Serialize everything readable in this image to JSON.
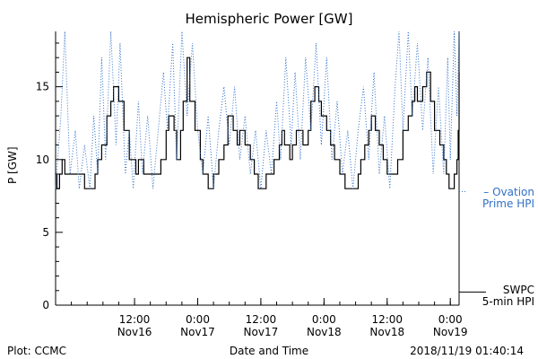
{
  "chart_data": {
    "type": "line",
    "title": "Hemispheric Power [GW]",
    "ylabel": "P [GW]",
    "xlabel": "Date and Time",
    "ylim": [
      0,
      18.8
    ],
    "xlim": [
      "2018-11-15 21:00",
      "2018-11-19 01:40"
    ],
    "yticks": [
      0,
      5,
      10,
      15
    ],
    "xticks": [
      {
        "time": "2018-11-16 12:00",
        "line1": "12:00",
        "line2": "Nov16"
      },
      {
        "time": "2018-11-17 00:00",
        "line1": "0:00",
        "line2": "Nov17"
      },
      {
        "time": "2018-11-17 12:00",
        "line1": "12:00",
        "line2": "Nov17"
      },
      {
        "time": "2018-11-18 00:00",
        "line1": "0:00",
        "line2": "Nov18"
      },
      {
        "time": "2018-11-18 12:00",
        "line1": "12:00",
        "line2": "Nov18"
      },
      {
        "time": "2018-11-19 00:00",
        "line1": "0:00",
        "line2": "Nov19"
      }
    ],
    "series": [
      {
        "name": "SWPC 5-min HPI",
        "color": "#000000",
        "style": "step",
        "points": [
          [
            "2018-11-15 21:00",
            9
          ],
          [
            "2018-11-15 21:15",
            8
          ],
          [
            "2018-11-15 21:45",
            9
          ],
          [
            "2018-11-15 22:15",
            10
          ],
          [
            "2018-11-15 22:45",
            9
          ],
          [
            "2018-11-16 02:30",
            8
          ],
          [
            "2018-11-16 04:30",
            9
          ],
          [
            "2018-11-16 05:00",
            10
          ],
          [
            "2018-11-16 05:45",
            11
          ],
          [
            "2018-11-16 06:45",
            13
          ],
          [
            "2018-11-16 07:30",
            14
          ],
          [
            "2018-11-16 08:00",
            15
          ],
          [
            "2018-11-16 09:00",
            14
          ],
          [
            "2018-11-16 10:00",
            12
          ],
          [
            "2018-11-16 11:00",
            10
          ],
          [
            "2018-11-16 12:15",
            9
          ],
          [
            "2018-11-16 12:45",
            10
          ],
          [
            "2018-11-16 13:45",
            9
          ],
          [
            "2018-11-16 17:00",
            10
          ],
          [
            "2018-11-16 18:00",
            12
          ],
          [
            "2018-11-16 18:30",
            13
          ],
          [
            "2018-11-16 19:30",
            12
          ],
          [
            "2018-11-16 20:00",
            10
          ],
          [
            "2018-11-16 20:45",
            12
          ],
          [
            "2018-11-16 21:15",
            14
          ],
          [
            "2018-11-16 22:00",
            17
          ],
          [
            "2018-11-16 22:30",
            14
          ],
          [
            "2018-11-16 23:30",
            12
          ],
          [
            "2018-11-17 00:30",
            10
          ],
          [
            "2018-11-17 01:00",
            9
          ],
          [
            "2018-11-17 02:00",
            8
          ],
          [
            "2018-11-17 03:00",
            9
          ],
          [
            "2018-11-17 04:00",
            10
          ],
          [
            "2018-11-17 05:00",
            11
          ],
          [
            "2018-11-17 05:45",
            13
          ],
          [
            "2018-11-17 06:45",
            12
          ],
          [
            "2018-11-17 07:30",
            11
          ],
          [
            "2018-11-17 08:00",
            12
          ],
          [
            "2018-11-17 09:00",
            11
          ],
          [
            "2018-11-17 10:00",
            10
          ],
          [
            "2018-11-17 10:45",
            9
          ],
          [
            "2018-11-17 11:30",
            8
          ],
          [
            "2018-11-17 13:00",
            9
          ],
          [
            "2018-11-17 14:30",
            10
          ],
          [
            "2018-11-17 15:30",
            11
          ],
          [
            "2018-11-17 16:00",
            12
          ],
          [
            "2018-11-17 16:30",
            11
          ],
          [
            "2018-11-17 17:30",
            10
          ],
          [
            "2018-11-17 18:00",
            11
          ],
          [
            "2018-11-17 18:45",
            12
          ],
          [
            "2018-11-17 20:00",
            11
          ],
          [
            "2018-11-17 21:00",
            12
          ],
          [
            "2018-11-17 21:30",
            14
          ],
          [
            "2018-11-17 22:15",
            15
          ],
          [
            "2018-11-17 23:00",
            14
          ],
          [
            "2018-11-17 23:30",
            13
          ],
          [
            "2018-11-18 00:30",
            12
          ],
          [
            "2018-11-18 01:15",
            11
          ],
          [
            "2018-11-18 02:00",
            10
          ],
          [
            "2018-11-18 03:00",
            9
          ],
          [
            "2018-11-18 04:00",
            8
          ],
          [
            "2018-11-18 06:30",
            9
          ],
          [
            "2018-11-18 07:00",
            10
          ],
          [
            "2018-11-18 07:45",
            11
          ],
          [
            "2018-11-18 08:30",
            12
          ],
          [
            "2018-11-18 09:00",
            13
          ],
          [
            "2018-11-18 09:45",
            12
          ],
          [
            "2018-11-18 10:30",
            11
          ],
          [
            "2018-11-18 11:15",
            10
          ],
          [
            "2018-11-18 12:00",
            9
          ],
          [
            "2018-11-18 14:00",
            10
          ],
          [
            "2018-11-18 15:00",
            12
          ],
          [
            "2018-11-18 16:00",
            13
          ],
          [
            "2018-11-18 16:45",
            14
          ],
          [
            "2018-11-18 17:15",
            15
          ],
          [
            "2018-11-18 17:45",
            14
          ],
          [
            "2018-11-18 18:45",
            15
          ],
          [
            "2018-11-18 19:30",
            16
          ],
          [
            "2018-11-18 20:15",
            14
          ],
          [
            "2018-11-18 21:00",
            12
          ],
          [
            "2018-11-18 22:00",
            11
          ],
          [
            "2018-11-18 22:45",
            10
          ],
          [
            "2018-11-18 23:15",
            9
          ],
          [
            "2018-11-18 23:45",
            8
          ],
          [
            "2018-11-19 00:45",
            9
          ],
          [
            "2018-11-19 01:15",
            10
          ],
          [
            "2018-11-19 01:30",
            12
          ],
          [
            "2018-11-19 01:40",
            14
          ],
          [
            "2018-11-19 01:40",
            16
          ]
        ]
      },
      {
        "name": "Ovation Prime HPI",
        "color": "#3070c8",
        "style": "dotted",
        "points": [
          [
            "2018-11-15 21:00",
            8
          ],
          [
            "2018-11-15 22:00",
            13
          ],
          [
            "2018-11-15 22:45",
            19
          ],
          [
            "2018-11-15 23:45",
            9
          ],
          [
            "2018-11-16 00:45",
            12
          ],
          [
            "2018-11-16 01:30",
            8
          ],
          [
            "2018-11-16 02:30",
            11
          ],
          [
            "2018-11-16 03:30",
            8
          ],
          [
            "2018-11-16 04:15",
            13
          ],
          [
            "2018-11-16 05:00",
            9
          ],
          [
            "2018-11-16 05:45",
            17
          ],
          [
            "2018-11-16 06:30",
            10
          ],
          [
            "2018-11-16 07:30",
            19
          ],
          [
            "2018-11-16 08:30",
            11
          ],
          [
            "2018-11-16 09:15",
            18
          ],
          [
            "2018-11-16 10:15",
            9
          ],
          [
            "2018-11-16 11:00",
            12
          ],
          [
            "2018-11-16 11:45",
            8
          ],
          [
            "2018-11-16 12:45",
            14
          ],
          [
            "2018-11-16 13:30",
            9
          ],
          [
            "2018-11-16 14:30",
            13
          ],
          [
            "2018-11-16 15:30",
            8
          ],
          [
            "2018-11-16 16:30",
            12
          ],
          [
            "2018-11-16 17:30",
            16
          ],
          [
            "2018-11-16 18:15",
            12
          ],
          [
            "2018-11-16 19:15",
            18
          ],
          [
            "2018-11-16 20:00",
            10
          ],
          [
            "2018-11-16 21:00",
            19
          ],
          [
            "2018-11-16 22:00",
            13
          ],
          [
            "2018-11-16 23:00",
            18
          ],
          [
            "2018-11-17 00:00",
            12
          ],
          [
            "2018-11-17 01:00",
            9
          ],
          [
            "2018-11-17 02:00",
            13
          ],
          [
            "2018-11-17 03:00",
            8
          ],
          [
            "2018-11-17 04:00",
            12
          ],
          [
            "2018-11-17 05:00",
            15
          ],
          [
            "2018-11-17 06:00",
            11
          ],
          [
            "2018-11-17 07:00",
            15
          ],
          [
            "2018-11-17 08:00",
            10
          ],
          [
            "2018-11-17 09:00",
            13
          ],
          [
            "2018-11-17 10:00",
            9
          ],
          [
            "2018-11-17 11:00",
            12
          ],
          [
            "2018-11-17 12:00",
            8
          ],
          [
            "2018-11-17 13:00",
            12
          ],
          [
            "2018-11-17 14:00",
            9
          ],
          [
            "2018-11-17 15:00",
            14
          ],
          [
            "2018-11-17 15:45",
            10
          ],
          [
            "2018-11-17 16:45",
            17
          ],
          [
            "2018-11-17 17:45",
            11
          ],
          [
            "2018-11-17 18:30",
            16
          ],
          [
            "2018-11-17 19:30",
            10
          ],
          [
            "2018-11-17 20:30",
            17
          ],
          [
            "2018-11-17 21:30",
            12
          ],
          [
            "2018-11-17 22:30",
            18
          ],
          [
            "2018-11-17 23:30",
            11
          ],
          [
            "2018-11-18 00:30",
            17
          ],
          [
            "2018-11-18 01:30",
            10
          ],
          [
            "2018-11-18 02:30",
            14
          ],
          [
            "2018-11-18 03:30",
            9
          ],
          [
            "2018-11-18 04:30",
            12
          ],
          [
            "2018-11-18 05:30",
            8
          ],
          [
            "2018-11-18 06:30",
            12
          ],
          [
            "2018-11-18 07:30",
            15
          ],
          [
            "2018-11-18 08:30",
            10
          ],
          [
            "2018-11-18 09:30",
            16
          ],
          [
            "2018-11-18 10:30",
            9
          ],
          [
            "2018-11-18 11:30",
            13
          ],
          [
            "2018-11-18 12:30",
            8
          ],
          [
            "2018-11-18 13:30",
            15
          ],
          [
            "2018-11-18 14:15",
            19
          ],
          [
            "2018-11-18 15:00",
            12
          ],
          [
            "2018-11-18 16:00",
            19
          ],
          [
            "2018-11-18 16:45",
            13
          ],
          [
            "2018-11-18 17:45",
            18
          ],
          [
            "2018-11-18 18:45",
            12
          ],
          [
            "2018-11-18 19:45",
            17
          ],
          [
            "2018-11-18 20:45",
            9
          ],
          [
            "2018-11-18 21:45",
            15
          ],
          [
            "2018-11-18 22:45",
            9
          ],
          [
            "2018-11-18 23:30",
            17
          ],
          [
            "2018-11-19 00:00",
            10
          ],
          [
            "2018-11-19 00:45",
            19
          ],
          [
            "2018-11-19 01:15",
            13
          ],
          [
            "2018-11-19 01:40",
            19
          ]
        ]
      }
    ],
    "legend": [
      {
        "series": "Ovation Prime HPI",
        "line1": "– Ovation",
        "line2": "Prime HPI",
        "color": "#3070c8",
        "position": "right-middle"
      },
      {
        "series": "SWPC 5-min HPI",
        "line1": "SWPC",
        "line2": "5-min HPI",
        "color": "#000000",
        "position": "right-bottom"
      }
    ],
    "grid": false
  },
  "footer": {
    "left": "Plot: CCMC",
    "center": "Date and Time",
    "right": "2018/11/19 01:40:14"
  }
}
